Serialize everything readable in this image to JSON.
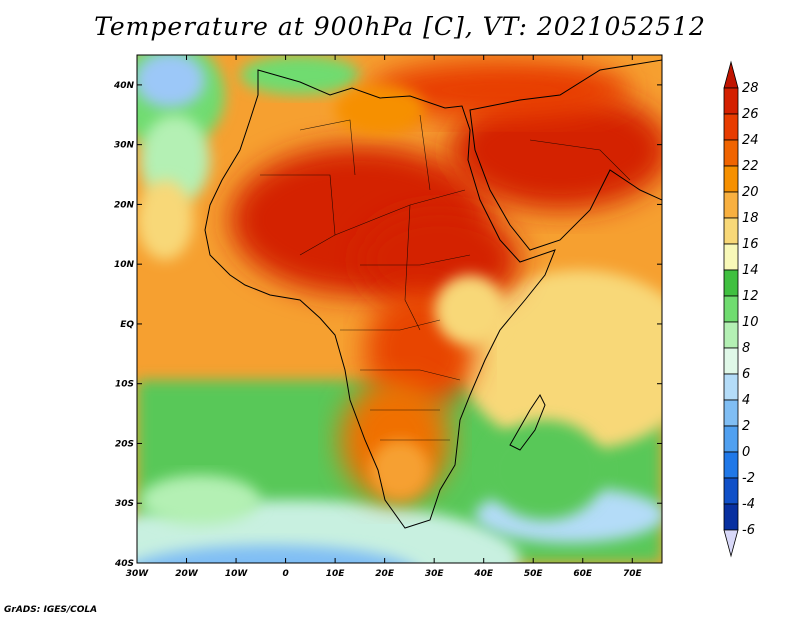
{
  "title": "Temperature at 900hPa [C], VT: 2021052512",
  "credit": "GrADS: IGES/COLA",
  "map": {
    "region": "Africa",
    "variable": "Temperature at 900hPa",
    "units": "C",
    "lon_range": [
      -30,
      76
    ],
    "lat_range": [
      -40,
      45
    ],
    "lon_ticks": [
      "30W",
      "20W",
      "10W",
      "0",
      "10E",
      "20E",
      "30E",
      "40E",
      "50E",
      "60E",
      "70E"
    ],
    "lat_ticks": [
      "40N",
      "30N",
      "20N",
      "10N",
      "EQ",
      "10S",
      "20S",
      "30S",
      "40S"
    ]
  },
  "colorbar": {
    "labels": [
      "28",
      "26",
      "24",
      "22",
      "20",
      "18",
      "16",
      "14",
      "12",
      "10",
      "8",
      "6",
      "4",
      "2",
      "0",
      "-2",
      "-4",
      "-6"
    ],
    "colors": [
      "#d42000",
      "#e83c00",
      "#f06400",
      "#f69000",
      "#f8b040",
      "#f8d878",
      "#f8f8b8",
      "#40c040",
      "#70dc70",
      "#b4f0b4",
      "#e0f8e8",
      "#b4dcf8",
      "#80bef4",
      "#50a0f0",
      "#2078e8",
      "#1050c8",
      "#0830a0",
      "#001070"
    ],
    "top_color": "#c01400",
    "bottom_color": "#d8d8f8"
  }
}
